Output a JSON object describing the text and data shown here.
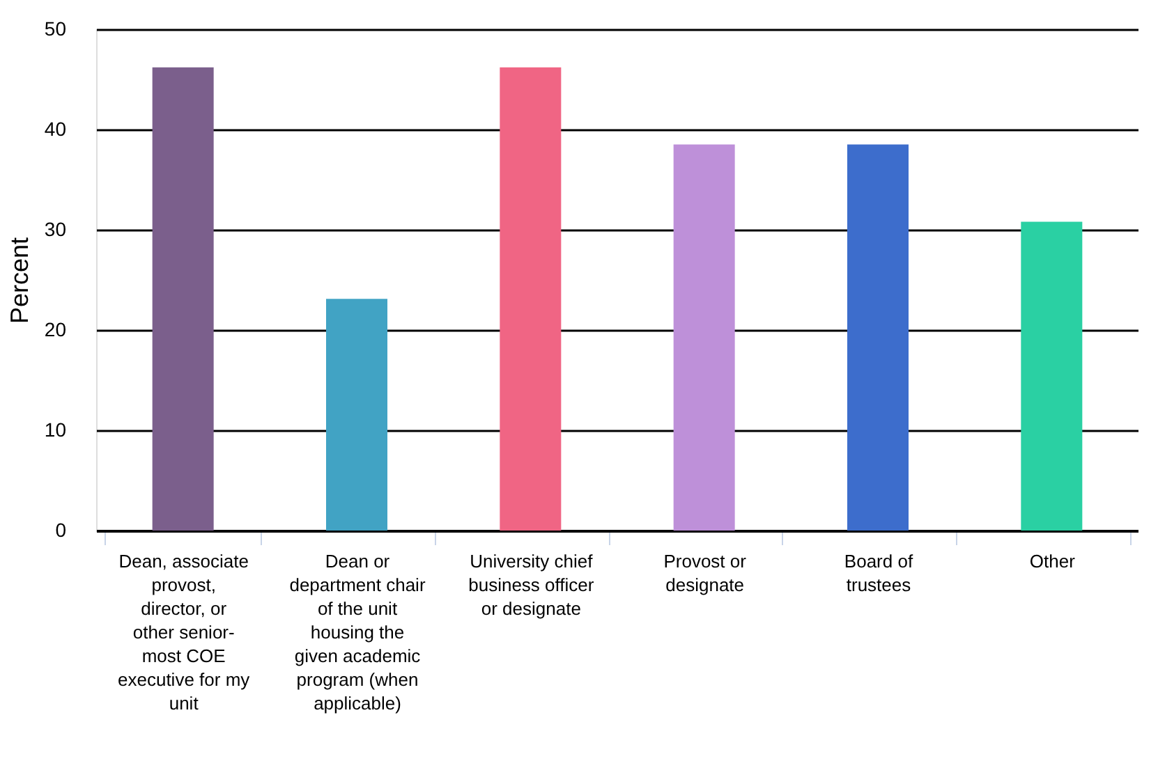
{
  "chart_data": {
    "type": "bar",
    "ylabel": "Percent",
    "categories": [
      "Dean, associate provost, director, or other senior-most COE executive for my unit",
      "Dean or department chair of the unit housing the given academic program (when applicable)",
      "University chief business officer or designate",
      "Provost or designate",
      "Board of trustees",
      "Other"
    ],
    "values": [
      46.2,
      23.1,
      46.2,
      38.5,
      38.5,
      30.8
    ],
    "colors": [
      "#7b5f8c",
      "#41a3c4",
      "#f06584",
      "#be90d9",
      "#3d6dcc",
      "#2ad0a3"
    ],
    "ylim": [
      0,
      50
    ],
    "yticks": [
      0,
      10,
      20,
      30,
      40,
      50
    ],
    "grid": "y",
    "legend": false
  }
}
